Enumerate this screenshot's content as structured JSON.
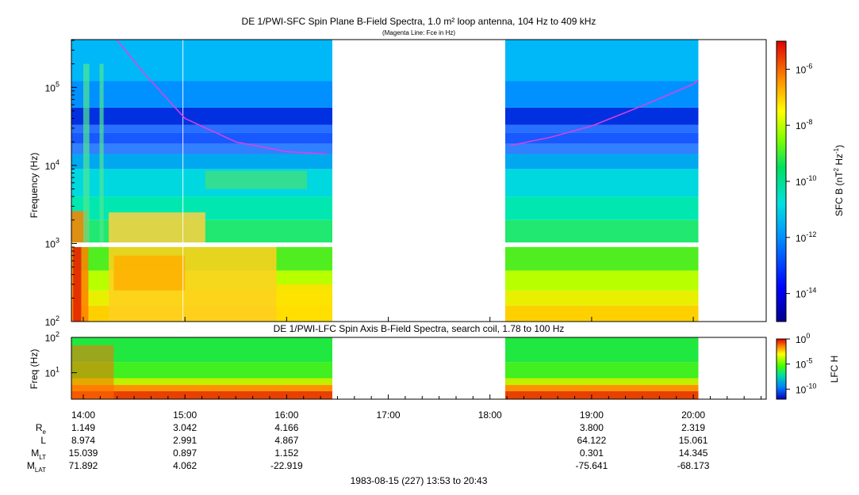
{
  "title": "DE 1/PWI-SFC  Spin Plane B-Field Spectra, 1.0 m² loop antenna, 104 Hz to 409 kHz",
  "subtitle": "(Magenta Line: Fce in Hz)",
  "lower_title": "DE 1/PWI-LFC  Spin Axis B-Field Spectra, search coil, 1.78 to 100 Hz",
  "footer": "1983-08-15 (227) 13:53 to 20:43",
  "colors": {
    "background": "#ffffff",
    "fce_line": "#e040e0",
    "gap": "#ffffff"
  },
  "chart_data": [
    {
      "type": "heatmap",
      "name": "SFC spectrogram",
      "title": "DE 1/PWI-SFC  Spin Plane B-Field Spectra, 1.0 m² loop antenna, 104 Hz to 409 kHz",
      "ylabel": "Frequency (Hz)",
      "yscale": "log",
      "ylim": [
        100,
        409000
      ],
      "y_ticks": [
        {
          "base": "10",
          "exp": "2",
          "value": 100
        },
        {
          "base": "10",
          "exp": "3",
          "value": 1000
        },
        {
          "base": "10",
          "exp": "4",
          "value": 10000
        },
        {
          "base": "10",
          "exp": "5",
          "value": 100000
        }
      ],
      "xlim_hours": [
        13.883,
        20.717
      ],
      "data_gaps_hours": [
        [
          16.45,
          18.15
        ]
      ],
      "colorbar": {
        "label": "SFC B (nT",
        "label_sup1": "2",
        "label_mid": " Hz",
        "label_sup2": "-1",
        "label_end": ")",
        "ticks": [
          {
            "base": "10",
            "exp": "-6",
            "log": -6
          },
          {
            "base": "10",
            "exp": "-8",
            "log": -8
          },
          {
            "base": "10",
            "exp": "-10",
            "log": -10
          },
          {
            "base": "10",
            "exp": "-12",
            "log": -12
          },
          {
            "base": "10",
            "exp": "-14",
            "log": -14
          }
        ],
        "range_log": [
          -15,
          -5
        ]
      },
      "fce_line": {
        "label": "Fce in Hz",
        "segments": [
          {
            "t": [
              14.33,
              14.6,
              15.0,
              15.5,
              16.0,
              16.4
            ],
            "f": [
              409000,
              150000,
              40000,
              20000,
              15000,
              14000
            ]
          },
          {
            "t": [
              18.2,
              18.6,
              19.0,
              19.5,
              20.0,
              20.05
            ],
            "f": [
              18000,
              23000,
              32000,
              58000,
              110000,
              125000
            ]
          }
        ]
      }
    },
    {
      "type": "heatmap",
      "name": "LFC spectrogram",
      "title": "DE 1/PWI-LFC  Spin Axis B-Field Spectra, search coil, 1.78 to 100 Hz",
      "ylabel": "Freq (Hz)",
      "yscale": "log",
      "ylim": [
        1.78,
        100
      ],
      "y_ticks": [
        {
          "base": "10",
          "exp": "1",
          "value": 10
        },
        {
          "base": "10",
          "exp": "2",
          "value": 100
        }
      ],
      "colorbar": {
        "label": "LFC H",
        "ticks": [
          {
            "base": "10",
            "exp": "0",
            "log": 0
          },
          {
            "base": "10",
            "exp": "-5",
            "log": -5
          },
          {
            "base": "10",
            "exp": "-10",
            "log": -10
          }
        ],
        "range_log": [
          -12,
          0
        ]
      }
    }
  ],
  "x_axis": {
    "ticks": [
      "14:00",
      "15:00",
      "16:00",
      "17:00",
      "18:00",
      "19:00",
      "20:00"
    ],
    "tick_hours": [
      14,
      15,
      16,
      17,
      18,
      19,
      20
    ]
  },
  "ephemeris": {
    "labels": [
      {
        "main": "R",
        "sub": "e"
      },
      {
        "main": "L",
        "sub": ""
      },
      {
        "main": "M",
        "sub": "LT"
      },
      {
        "main": "M",
        "sub": "LAT"
      }
    ],
    "columns": [
      {
        "hour": 14,
        "values": [
          "1.149",
          "8.974",
          "15.039",
          "71.892"
        ]
      },
      {
        "hour": 15,
        "values": [
          "3.042",
          "2.991",
          "0.897",
          "4.062"
        ]
      },
      {
        "hour": 16,
        "values": [
          "4.166",
          "4.867",
          "1.152",
          "-22.919"
        ]
      },
      {
        "hour": 19,
        "values": [
          "3.800",
          "64.122",
          "0.301",
          "-75.641"
        ]
      },
      {
        "hour": 20,
        "values": [
          "2.319",
          "15.061",
          "14.345",
          "-68.173"
        ]
      }
    ]
  }
}
